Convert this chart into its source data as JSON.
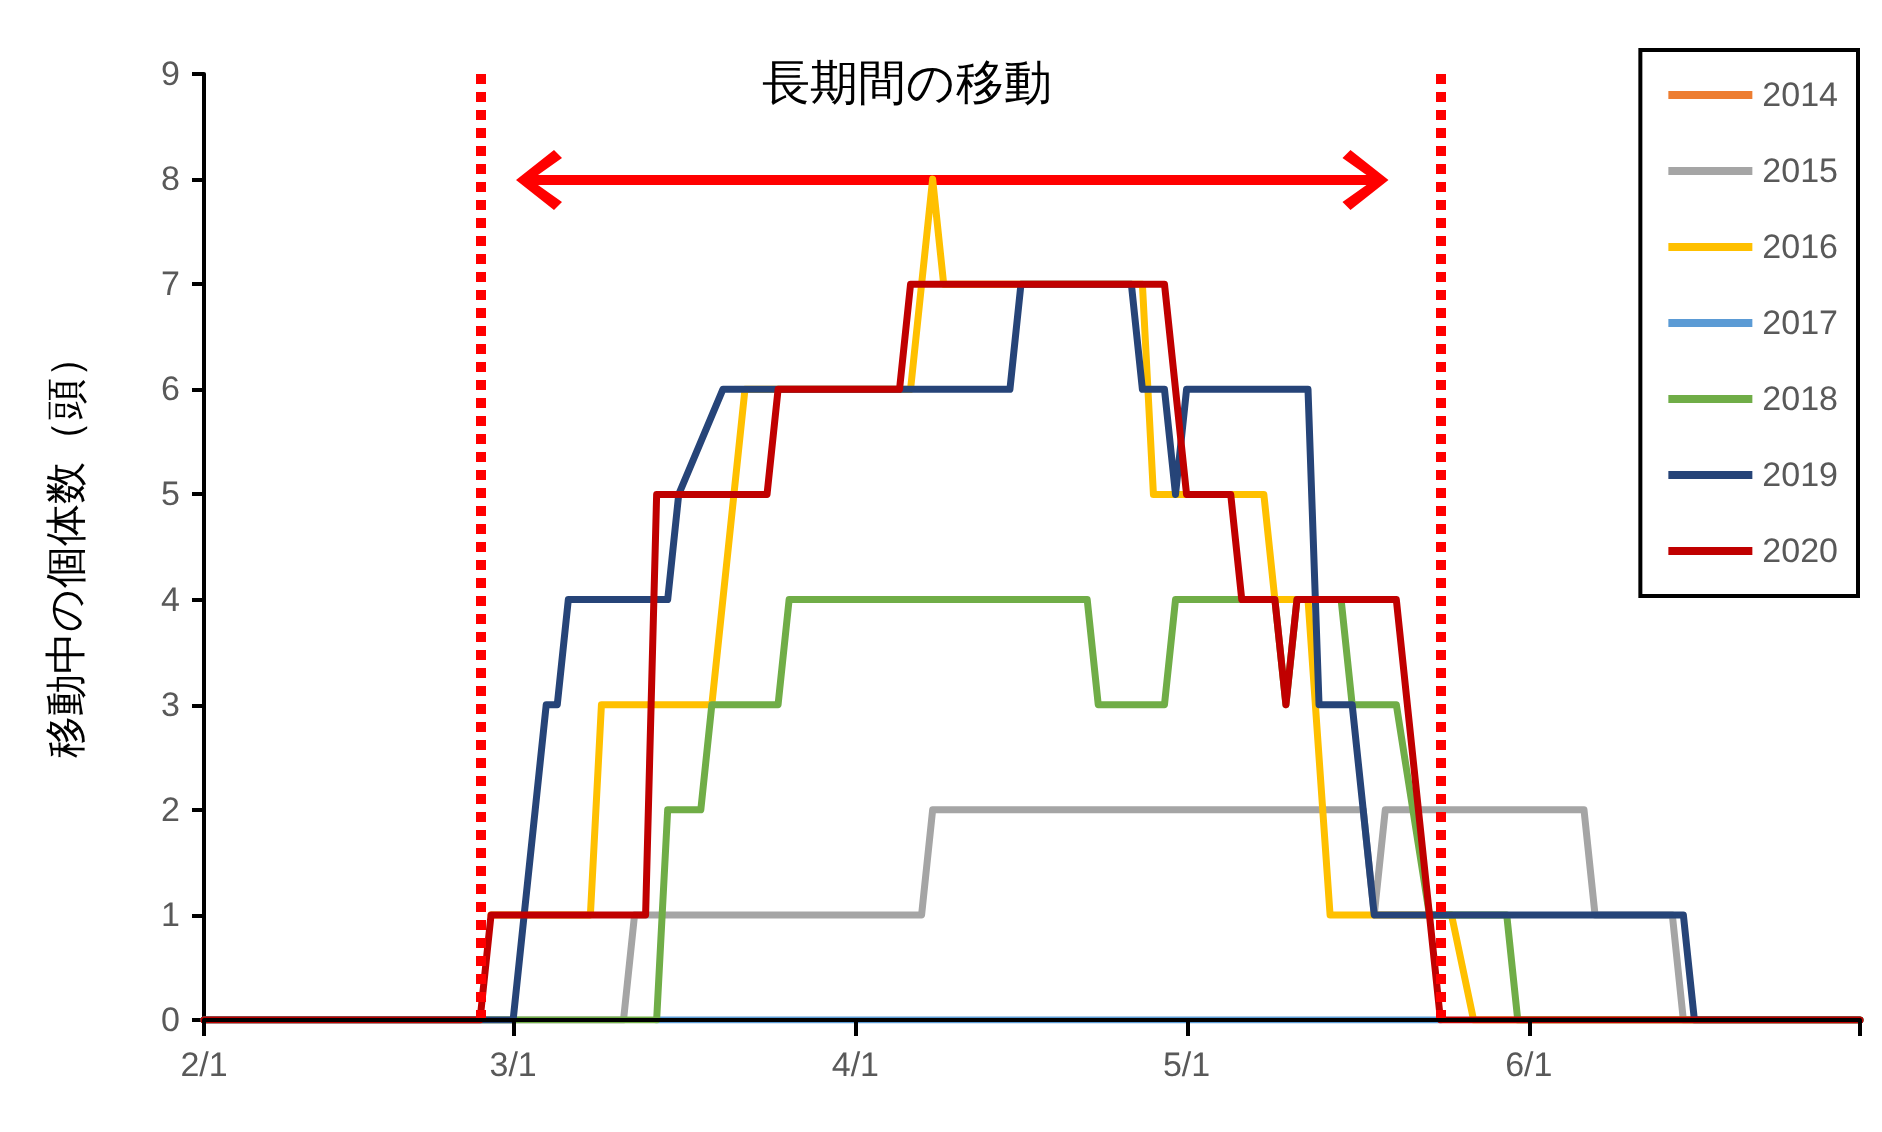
{
  "chart_data": {
    "type": "line",
    "ylabel": "移動中の個体数（頭）",
    "annotations": [
      "長期間の移動"
    ],
    "xlim": [
      "--02-01",
      "--07-01"
    ],
    "xticks": [
      {
        "value": "--02-01",
        "label": "2/1"
      },
      {
        "value": "--03-01",
        "label": "3/1"
      },
      {
        "value": "--04-01",
        "label": "4/1"
      },
      {
        "value": "--05-01",
        "label": "5/1"
      },
      {
        "value": "--06-01",
        "label": "6/1"
      },
      {
        "value": "--07-01",
        "label": null
      }
    ],
    "ylim": [
      0,
      9
    ],
    "yticks": [
      0,
      1,
      2,
      3,
      4,
      5,
      6,
      7,
      8,
      9
    ],
    "legend": "top right",
    "marker": "none",
    "line_style": "solid",
    "ref_lines": [
      {
        "axis": "x",
        "value": "--02-26",
        "color": "#ff0000",
        "line_style": "dotted"
      },
      {
        "axis": "x",
        "value": "--05-24",
        "color": "#ff0000",
        "line_style": "dotted"
      }
    ],
    "series": [
      {
        "name": "2014",
        "color": "#ed7d31"
      },
      {
        "name": "2015",
        "color": "#a5a5a5",
        "x": [
          "--02-01",
          "--03-11",
          "--03-12",
          "--04-07",
          "--04-08",
          "--05-17",
          "--05-18",
          "--05-19",
          "--06-06",
          "--06-07",
          "--06-14",
          "--06-15",
          "--07-01"
        ],
        "values": [
          0,
          0,
          1,
          1,
          2,
          2,
          1,
          2,
          2,
          1,
          1,
          0,
          0
        ]
      },
      {
        "name": "2016",
        "color": "#ffc000",
        "x": [
          "--02-27",
          "--03-08",
          "--03-09",
          "--03-19",
          "--03-21",
          "--03-22",
          "--04-06",
          "--04-07",
          "--04-08",
          "--04-09",
          "--04-27",
          "--04-28",
          "--05-08",
          "--05-09",
          "--05-12",
          "--05-14",
          "--05-25",
          "--05-27",
          "--07-01"
        ],
        "values": [
          1,
          1,
          3,
          3,
          5,
          6,
          6,
          7,
          8,
          7,
          7,
          5,
          5,
          4,
          4,
          1,
          1,
          0,
          0
        ]
      },
      {
        "name": "2017",
        "color": "#5b9bd5",
        "x": [
          "--03-14",
          "--05-24"
        ],
        "values": [
          0,
          0
        ]
      },
      {
        "name": "2018",
        "color": "#70ad47",
        "x": [
          "--02-01",
          "--03-14",
          "--03-15",
          "--03-18",
          "--03-19",
          "--03-25",
          "--03-26",
          "--04-22",
          "--04-23",
          "--04-29",
          "--04-30",
          "--05-09",
          "--05-10",
          "--05-11",
          "--05-15",
          "--05-16",
          "--05-20",
          "--05-23",
          "--05-30",
          "--05-31",
          "--07-01"
        ],
        "values": [
          0,
          0,
          2,
          2,
          3,
          3,
          4,
          4,
          3,
          3,
          4,
          4,
          3,
          4,
          4,
          3,
          3,
          1,
          1,
          0,
          0
        ]
      },
      {
        "name": "2019",
        "color": "#264478",
        "x": [
          "--02-01",
          "--03-01",
          "--03-02",
          "--03-03",
          "--03-04",
          "--03-05",
          "--03-06",
          "--03-15",
          "--03-16",
          "--03-20",
          "--04-15",
          "--04-16",
          "--04-26",
          "--04-27",
          "--04-29",
          "--04-30",
          "--05-01",
          "--05-12",
          "--05-13",
          "--05-16",
          "--05-18",
          "--06-15",
          "--06-16",
          "--07-01"
        ],
        "values": [
          0,
          0,
          1,
          2,
          3,
          3,
          4,
          4,
          5,
          6,
          6,
          7,
          7,
          6,
          6,
          5,
          6,
          6,
          3,
          3,
          1,
          1,
          0,
          0
        ]
      },
      {
        "name": "2020",
        "color": "#c00000",
        "x": [
          "--02-01",
          "--02-26",
          "--02-27",
          "--03-13",
          "--03-14",
          "--03-24",
          "--03-25",
          "--04-05",
          "--04-06",
          "--04-29",
          "--05-01",
          "--05-05",
          "--05-06",
          "--05-09",
          "--05-10",
          "--05-11",
          "--05-20",
          "--05-23",
          "--05-24",
          "--07-01"
        ],
        "values": [
          0,
          0,
          1,
          1,
          5,
          5,
          6,
          6,
          7,
          7,
          5,
          5,
          4,
          4,
          3,
          4,
          4,
          1,
          0,
          0
        ]
      }
    ]
  }
}
